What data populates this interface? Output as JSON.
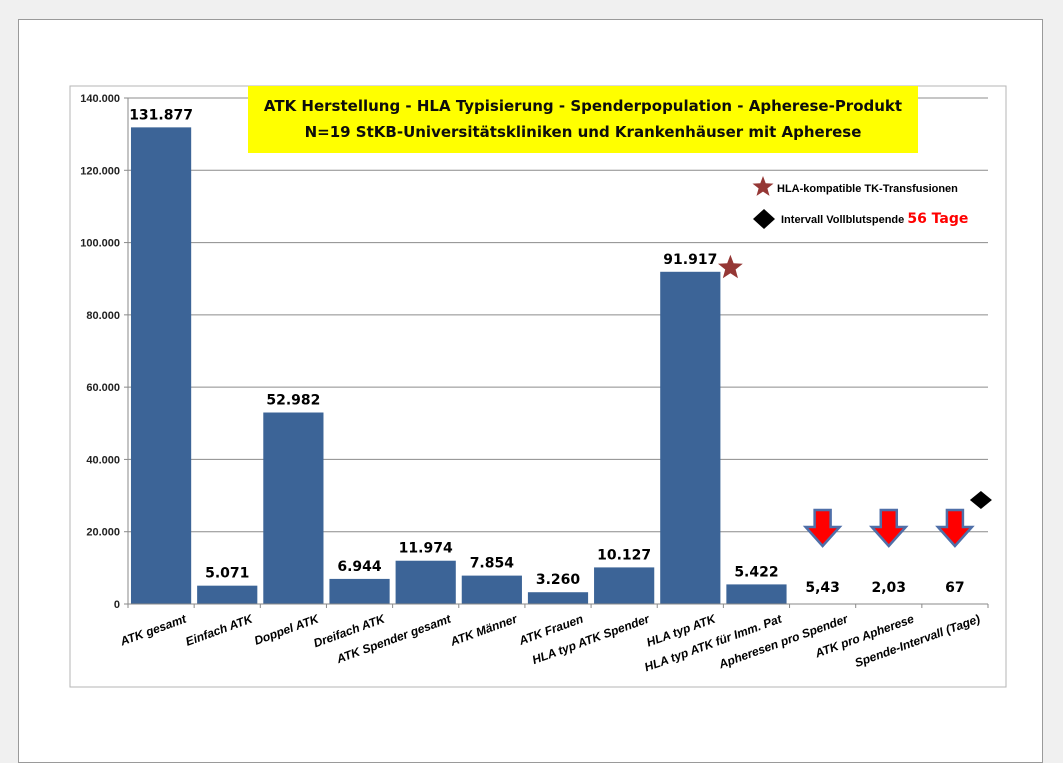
{
  "chart_data": {
    "type": "bar",
    "title": [
      "ATK Herstellung - HLA Typisierung - Spenderpopulation - Apherese-Produkt",
      "N=19 StKB-Universitätskliniken und Krankenhäuser mit Apherese"
    ],
    "ylim": [
      0,
      140000
    ],
    "yticks": [
      "0",
      "20.000",
      "40.000",
      "60.000",
      "80.000",
      "100.000",
      "120.000",
      "140.000"
    ],
    "ytick_values": [
      0,
      20000,
      40000,
      60000,
      80000,
      100000,
      120000,
      140000
    ],
    "categories": [
      "ATK gesamt",
      "Einfach ATK",
      "Doppel ATK",
      "Dreifach ATK",
      "ATK Spender gesamt",
      "ATK Männer",
      "ATK Frauen",
      "HLA typ ATK Spender",
      "HLA typ ATK",
      "HLA typ ATK für Imm. Pat",
      "Apheresen pro Spender",
      "ATK pro Apherese",
      "Spende-Intervall (Tage)"
    ],
    "values": [
      131877,
      5071,
      52982,
      6944,
      11974,
      7854,
      3260,
      10127,
      91917,
      5422,
      5.43,
      2.03,
      67
    ],
    "data_labels": [
      "131.877",
      "5.071",
      "52.982",
      "6.944",
      "11.974",
      "7.854",
      "3.260",
      "10.127",
      "91.917",
      "5.422",
      "5,43",
      "2,03",
      "67"
    ],
    "highlight_label_index": 12,
    "arrow_indices": [
      10,
      11,
      12
    ],
    "star_index": 8,
    "diamond_index": 12,
    "legend": [
      {
        "symbol": "star",
        "text": "HLA-kompatible TK-Transfusionen"
      },
      {
        "symbol": "diamond",
        "text": "Intervall Vollblutspende",
        "highlight": "56 Tage"
      }
    ],
    "grid": true,
    "colors": {
      "bar": "#3c6497",
      "title_bg": "#ffff00",
      "star": "#953735",
      "arrow": "#ff0000",
      "arrow_outline": "#4f6fa8",
      "highlight_text": "#ff0000"
    }
  }
}
